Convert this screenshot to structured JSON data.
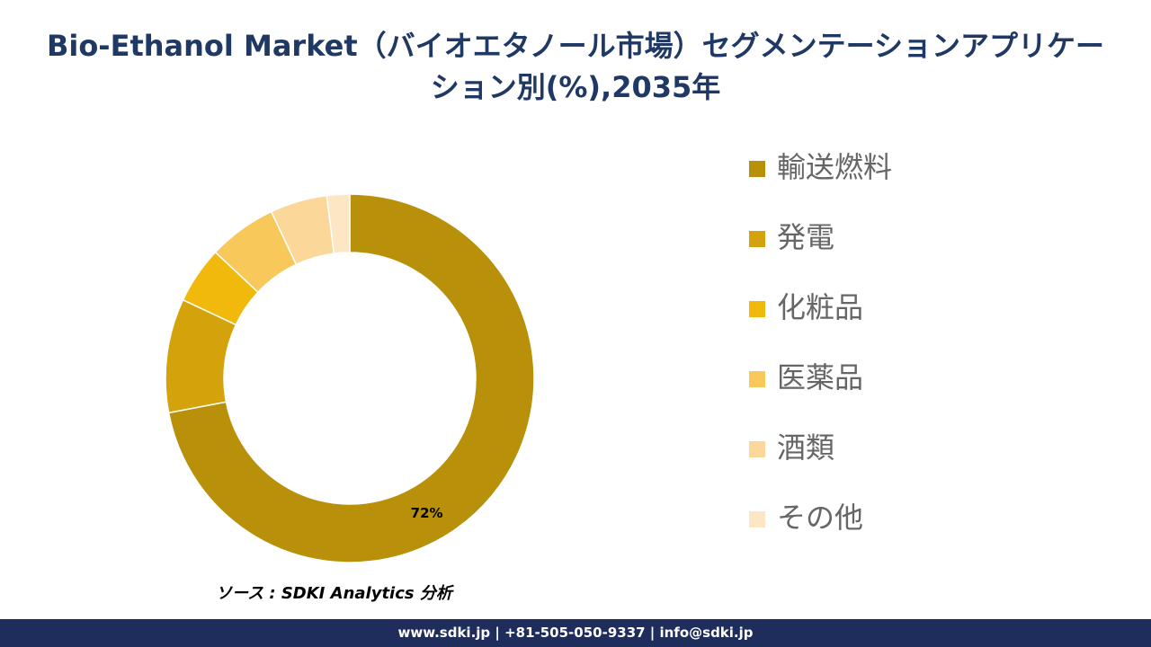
{
  "title": "Bio-Ethanol Market（バイオエタノール市場）セグメンテーションアプリケーション別(%),2035年",
  "chart_data": {
    "type": "donut",
    "categories": [
      "輸送燃料",
      "発電",
      "化粧品",
      "医薬品",
      "酒類",
      "その他"
    ],
    "values": [
      72,
      10,
      5,
      6,
      5,
      2
    ],
    "value_labels": [
      "72%",
      null,
      null,
      null,
      null,
      null
    ],
    "colors": [
      "#b8900a",
      "#d4a20a",
      "#f0b90b",
      "#f8c95a",
      "#fbd89a",
      "#fde6c4"
    ],
    "legend": "right"
  },
  "source": "ソース : SDKI Analytics 分析",
  "footer": "www.sdki.jp | +81-505-050-9337 | info@sdki.jp"
}
